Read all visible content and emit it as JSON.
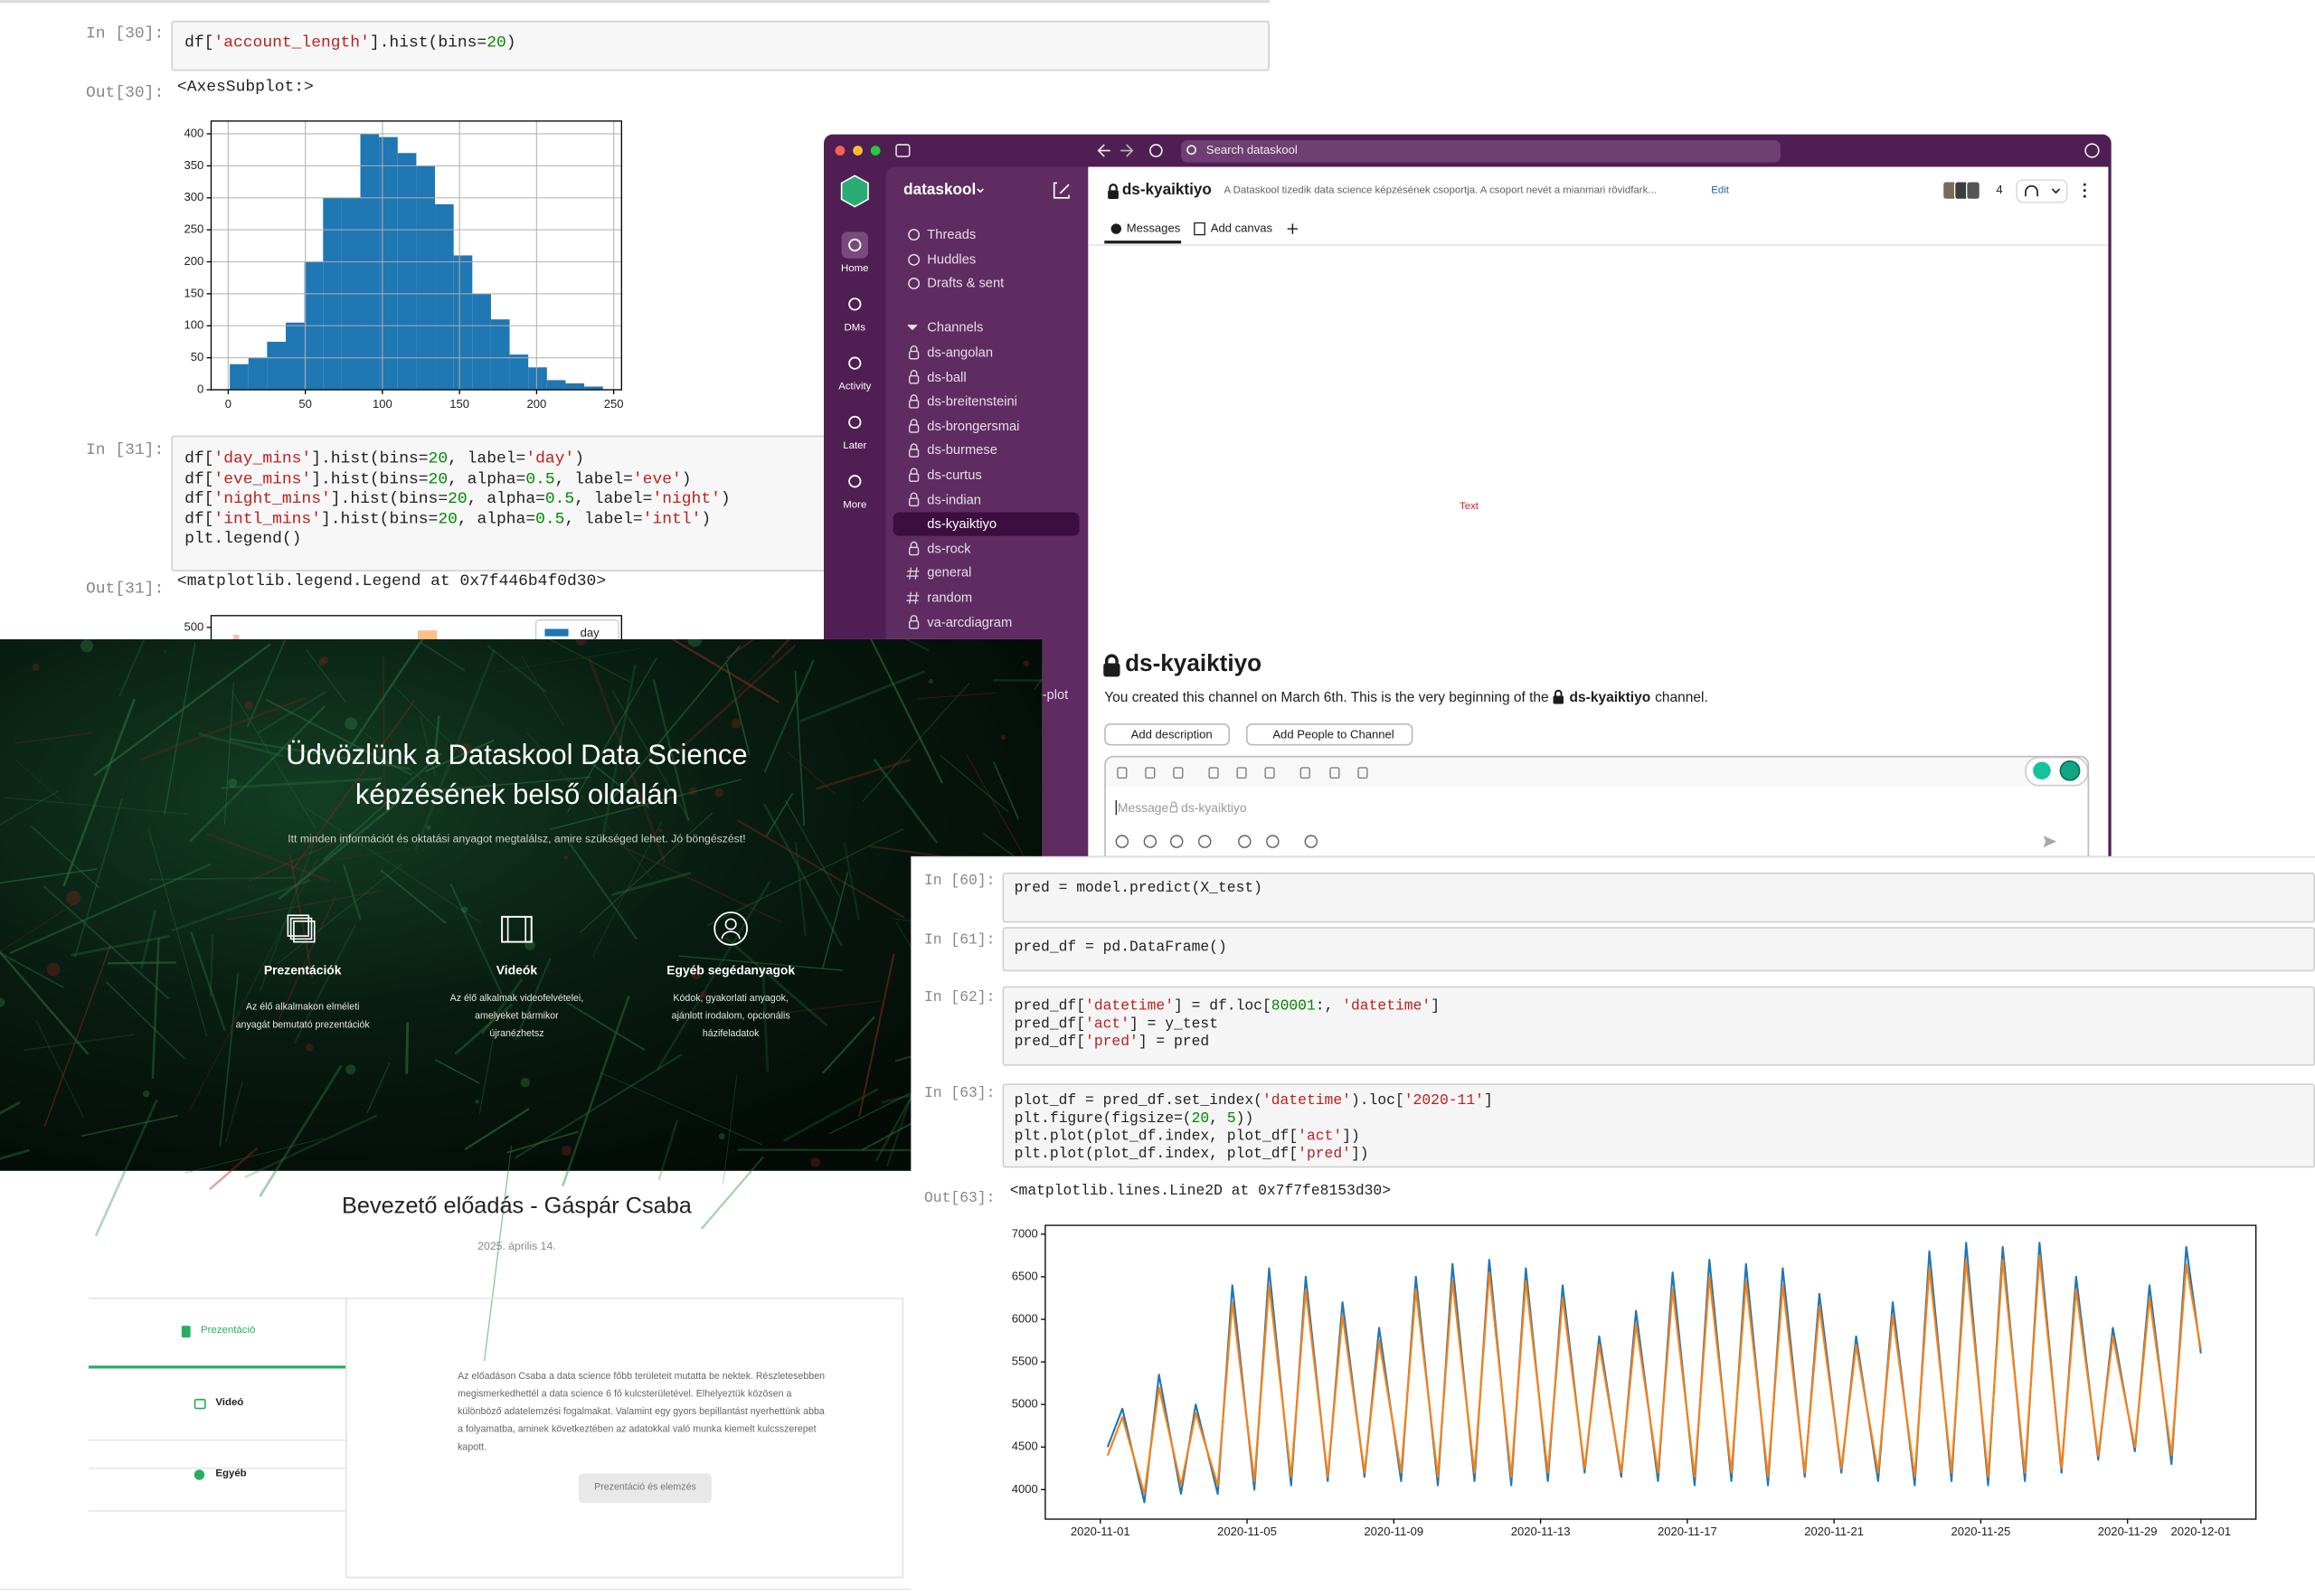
{
  "notebook_top": {
    "cells": [
      {
        "prompt": "In [30]:",
        "code": [
          "df['account_length'].hist(bins=20)"
        ],
        "out_prompt": "Out[30]:",
        "output": "<AxesSubplot:>"
      },
      {
        "prompt": "In [31]:",
        "code": [
          "df['day_mins'].hist(bins=20, label='day')",
          "df['eve_mins'].hist(bins=20, alpha=0.5, label='eve')",
          "df['night_mins'].hist(bins=20, alpha=0.5, label='night')",
          "df['intl_mins'].hist(bins=20, alpha=0.5, label='intl')",
          "plt.legend()"
        ],
        "out_prompt": "Out[31]:",
        "output": "<matplotlib.legend.Legend at 0x7f446b4f0d30>"
      }
    ]
  },
  "slack": {
    "search": "Search dataskool",
    "workspace": "dataskool",
    "nav": [
      "Home",
      "DMs",
      "Activity",
      "Later",
      "More"
    ],
    "shortcuts": [
      "Threads",
      "Huddles",
      "Drafts & sent"
    ],
    "channels_header": "Channels",
    "channels": [
      {
        "name": "ds-angolan",
        "private": true
      },
      {
        "name": "ds-ball",
        "private": true
      },
      {
        "name": "ds-breitensteini",
        "private": true
      },
      {
        "name": "ds-brongersmai",
        "private": true
      },
      {
        "name": "ds-burmese",
        "private": true
      },
      {
        "name": "ds-curtus",
        "private": true
      },
      {
        "name": "ds-indian",
        "private": true
      },
      {
        "name": "ds-kyaiktiyo",
        "private": true,
        "selected": true
      },
      {
        "name": "ds-rock",
        "private": true
      },
      {
        "name": "general",
        "private": false
      },
      {
        "name": "random",
        "private": false
      },
      {
        "name": "va-arcdiagram",
        "private": true
      }
    ],
    "partial_channel": "-plot",
    "channel": {
      "name": "ds-kyaiktiyo",
      "description": "A Dataskool tizedik data science képzésének csoportja. A csoport nevét a mianmari rövidfark...",
      "edit": "Edit",
      "members": 4,
      "tabs": [
        "Messages",
        "Add canvas"
      ]
    },
    "canvas_text": "Text",
    "intro": {
      "title": "ds-kyaiktiyo",
      "sentence_start": "You created this channel on March 6th. This is the very beginning of the",
      "channel": "ds-kyaiktiyo",
      "sentence_end": "channel.",
      "buttons": [
        "Add description",
        "Add People to Channel"
      ]
    },
    "composer": {
      "placeholder": "Message",
      "channel": "ds-kyaiktiyo"
    }
  },
  "website": {
    "hero": {
      "title_lines": [
        "Üdvözlünk a Dataskool Data Science",
        "képzésének belső oldalán"
      ],
      "subtitle": "Itt minden információt és oktatási anyagot megtalálsz, amire szükséged lehet. Jó böngészést!",
      "features": [
        {
          "title": "Prezentációk",
          "text": "Az élő alkalmakon elméleti anyagát bemutató prezentációk"
        },
        {
          "title": "Videók",
          "text": "Az élő alkalmak videofelvételei, amelyeket bármikor újranézhetsz"
        },
        {
          "title": "Egyéb segédanyagok",
          "text": "Kódok, gyakorlati anyagok, ajánlott irodalom, opcionális házifeladatok"
        }
      ]
    },
    "lecture": {
      "title": "Bevezető előadás - Gáspár Csaba",
      "date": "2025. április 14.",
      "tabs": [
        "Prezentáció",
        "Videó",
        "Egyéb"
      ],
      "description": "Az előadáson Csaba a data science főbb területeit mutatta be nektek. Részletesebben megismerkedhettél a data science 6 fő kulcsterületével. Elhelyeztük közösen a különböző adatelemzési fogalmakat. Valamint egy gyors bepillantást nyerhettünk abba a folyamatba, aminek következtében az adatokkal való munka kiemelt kulcsszerepet kapott.",
      "button": "Prezentáció és elemzés"
    }
  },
  "notebook_bottom": {
    "cells": [
      {
        "prompt": "In [60]:",
        "code": [
          "pred = model.predict(X_test)"
        ]
      },
      {
        "prompt": "In [61]:",
        "code": [
          "pred_df = pd.DataFrame()"
        ]
      },
      {
        "prompt": "In [62]:",
        "code": [
          "pred_df['datetime'] = df.loc[80001:, 'datetime']",
          "pred_df['act'] = y_test",
          "pred_df['pred'] = pred"
        ]
      },
      {
        "prompt": "In [63]:",
        "code": [
          "plot_df = pred_df.set_index('datetime').loc['2020-11']",
          "plt.figure(figsize=(20, 5))",
          "plt.plot(plot_df.index, plot_df['act'])",
          "plt.plot(plot_df.index, plot_df['pred'])"
        ],
        "out_prompt": "Out[63]:",
        "output": "<matplotlib.lines.Line2D at 0x7f7fe8153d30>"
      }
    ]
  },
  "chart_data": [
    {
      "type": "histogram",
      "color": "#1f77b4",
      "grid": true,
      "bins": [
        1,
        13.1,
        25.2,
        37.3,
        49.4,
        61.5,
        73.6,
        85.7,
        97.8,
        109.9,
        122,
        134.1,
        146.2,
        158.3,
        170.4,
        182.5,
        194.6,
        206.7,
        218.8,
        230.9,
        243
      ],
      "counts": [
        40,
        50,
        75,
        105,
        200,
        300,
        300,
        400,
        395,
        370,
        350,
        290,
        210,
        150,
        110,
        55,
        35,
        15,
        10,
        5
      ],
      "xlim": [
        -11.1,
        255.1
      ],
      "ylim": [
        0,
        420
      ],
      "xticks": [
        0,
        50,
        100,
        150,
        200,
        250
      ],
      "yticks": [
        0,
        50,
        100,
        150,
        200,
        250,
        300,
        350,
        400
      ]
    },
    {
      "type": "histogram",
      "yticks": [
        500
      ],
      "series": [
        {
          "name": "day",
          "color": "#1f77b4"
        }
      ]
    },
    {
      "type": "line",
      "xlim": [
        -1.5,
        31.5
      ],
      "ylim": [
        3653,
        7104
      ],
      "yticks": [
        4000,
        4500,
        5000,
        5500,
        6000,
        6500,
        7000
      ],
      "xticks": [
        {
          "value": 0,
          "label": "2020-11-01"
        },
        {
          "value": 4,
          "label": "2020-11-05"
        },
        {
          "value": 8,
          "label": "2020-11-09"
        },
        {
          "value": 12,
          "label": "2020-11-13"
        },
        {
          "value": 16,
          "label": "2020-11-17"
        },
        {
          "value": 20,
          "label": "2020-11-21"
        },
        {
          "value": 24,
          "label": "2020-11-25"
        },
        {
          "value": 28,
          "label": "2020-11-29"
        },
        {
          "value": 30,
          "label": "2020-12-01"
        }
      ],
      "x": [
        0.2,
        0.6,
        1.2,
        1.6,
        2.2,
        2.6,
        3.2,
        3.6,
        4.2,
        4.6,
        5.2,
        5.6,
        6.2,
        6.6,
        7.2,
        7.6,
        8.2,
        8.6,
        9.2,
        9.6,
        10.2,
        10.6,
        11.2,
        11.6,
        12.2,
        12.6,
        13.2,
        13.6,
        14.2,
        14.6,
        15.2,
        15.6,
        16.2,
        16.6,
        17.2,
        17.6,
        18.2,
        18.6,
        19.2,
        19.6,
        20.2,
        20.6,
        21.2,
        21.6,
        22.2,
        22.6,
        23.2,
        23.6,
        24.2,
        24.6,
        25.2,
        25.6,
        26.2,
        26.6,
        27.2,
        27.6,
        28.2,
        28.6,
        29.2,
        29.6,
        30
      ],
      "series": [
        {
          "color": "#1f77b4",
          "values": [
            4500,
            4950,
            3850,
            5350,
            3950,
            5000,
            3950,
            6400,
            4000,
            6600,
            4050,
            6500,
            4100,
            6200,
            4150,
            5900,
            4100,
            6500,
            4050,
            6650,
            4100,
            6700,
            4050,
            6600,
            4100,
            6400,
            4200,
            5800,
            4150,
            6100,
            4100,
            6550,
            4050,
            6700,
            4100,
            6650,
            4050,
            6600,
            4150,
            6300,
            4200,
            5800,
            4100,
            6200,
            4050,
            6800,
            4100,
            6900,
            4050,
            6850,
            4100,
            6900,
            4200,
            6500,
            4350,
            5900,
            4450,
            6400,
            4300,
            6850,
            5600
          ]
        },
        {
          "color": "#ff7f0e",
          "values": [
            4400,
            4850,
            3950,
            5200,
            4050,
            4900,
            4050,
            6200,
            4100,
            6400,
            4150,
            6350,
            4150,
            6050,
            4200,
            5750,
            4200,
            6350,
            4150,
            6450,
            4200,
            6550,
            4150,
            6450,
            4200,
            6250,
            4250,
            5700,
            4200,
            5950,
            4200,
            6350,
            4150,
            6500,
            4200,
            6450,
            4150,
            6400,
            4200,
            6150,
            4250,
            5700,
            4200,
            6050,
            4150,
            6600,
            4200,
            6700,
            4150,
            6700,
            4200,
            6750,
            4250,
            6350,
            4400,
            5800,
            4500,
            6250,
            4400,
            6650,
            5650
          ]
        }
      ]
    }
  ]
}
